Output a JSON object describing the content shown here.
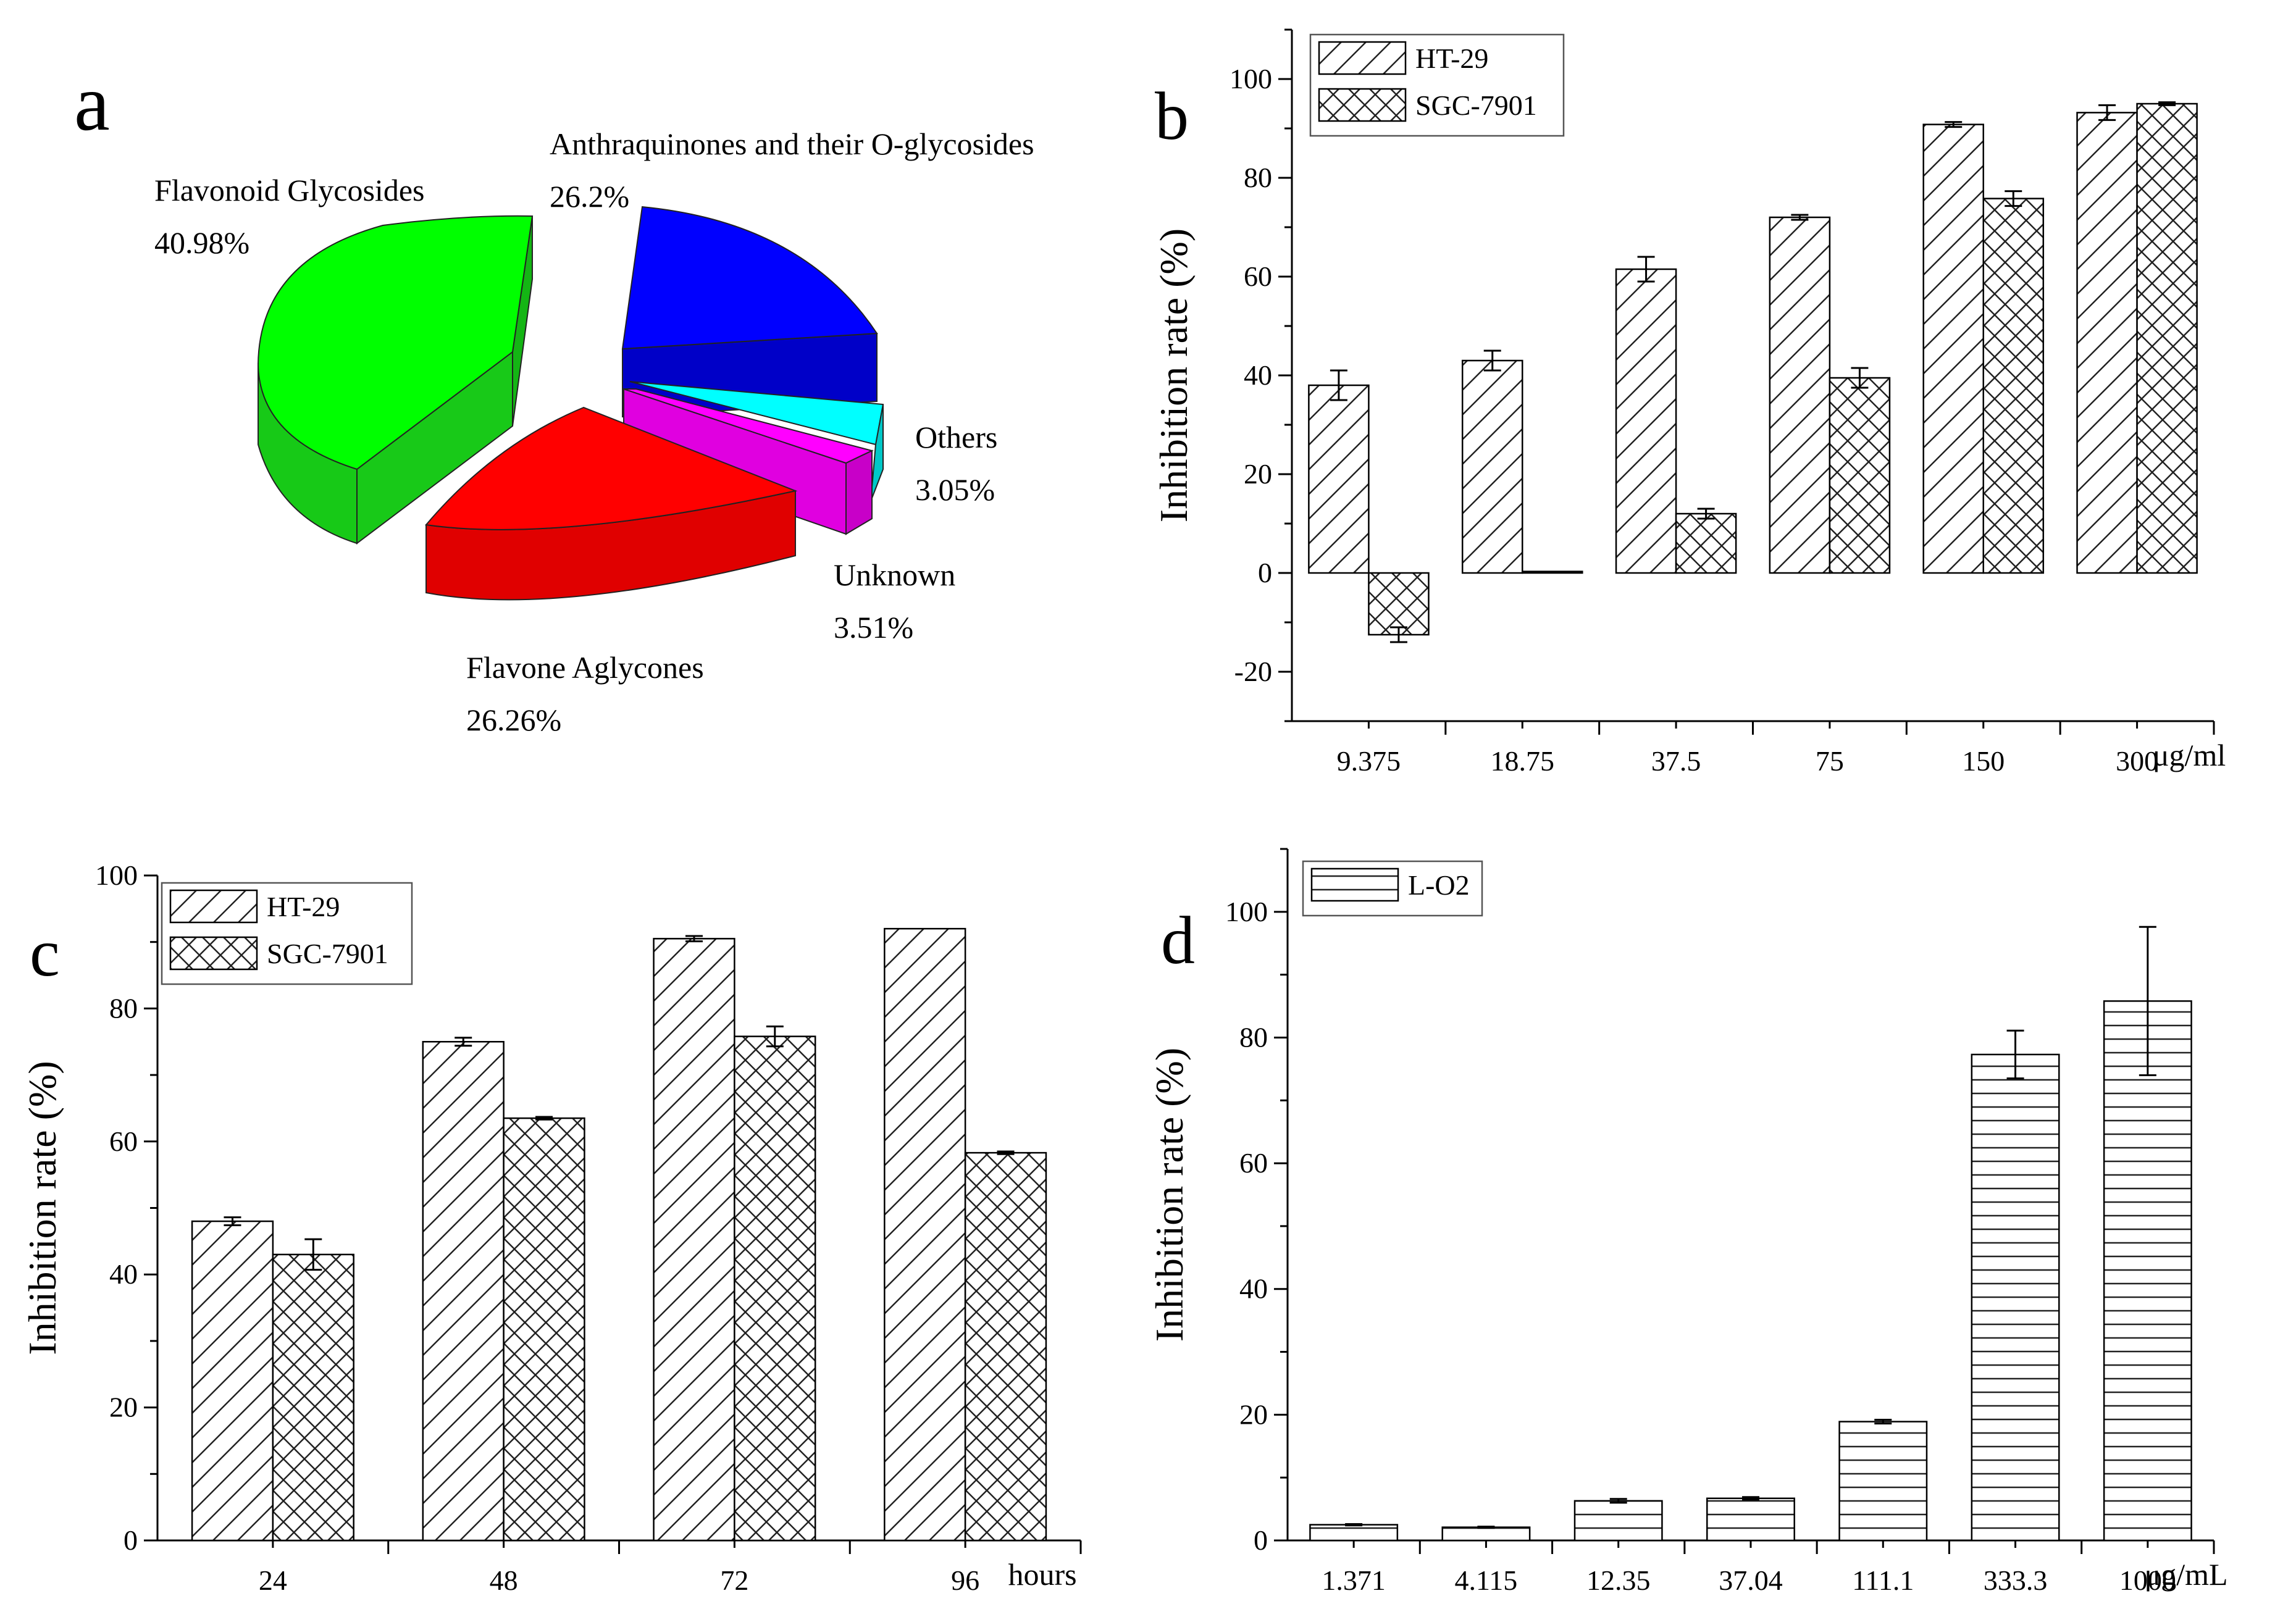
{
  "panels": {
    "a": {
      "letter": "a"
    },
    "b": {
      "letter": "b"
    },
    "c": {
      "letter": "c"
    },
    "d": {
      "letter": "d"
    }
  },
  "chart_data": [
    {
      "id": "a",
      "type": "pie",
      "title": "",
      "slices": [
        {
          "label": "Flavonoid Glycosides",
          "value_label": "40.98%",
          "value": 40.98,
          "color": "#00ff00"
        },
        {
          "label": "Anthraquinones and their O-glycosides",
          "value_label": "26.2%",
          "value": 26.2,
          "color": "#0000ff"
        },
        {
          "label": "Others",
          "value_label": "3.05%",
          "value": 3.05,
          "color": "#00ffff"
        },
        {
          "label": "Unknown",
          "value_label": "3.51%",
          "value": 3.51,
          "color": "#ff00ff"
        },
        {
          "label": "Flavone Aglycones",
          "value_label": "26.26%",
          "value": 26.26,
          "color": "#ff0000"
        }
      ]
    },
    {
      "id": "b",
      "type": "bar",
      "categories": [
        "9.375",
        "18.75",
        "37.5",
        "75",
        "150",
        "300"
      ],
      "xunit": "μg/ml",
      "ylabel": "Inhibition rate (%)",
      "ylim": [
        -30,
        110
      ],
      "yticks": [
        -20,
        0,
        20,
        40,
        60,
        80,
        100
      ],
      "legend_position": "top-left",
      "series": [
        {
          "name": "HT-29",
          "pattern": "diag",
          "values": [
            38,
            43,
            61.5,
            72,
            90.8,
            93.2
          ],
          "errors": [
            3,
            2,
            2.5,
            0.5,
            0.5,
            1.5
          ]
        },
        {
          "name": "SGC-7901",
          "pattern": "cross",
          "values": [
            -12.5,
            0.3,
            12,
            39.5,
            75.8,
            95
          ],
          "errors": [
            1.5,
            0,
            1,
            2,
            1.5,
            0.3
          ]
        }
      ]
    },
    {
      "id": "c",
      "type": "bar",
      "categories": [
        "24",
        "48",
        "72",
        "96"
      ],
      "xunit": "hours",
      "ylabel": "Inhibition rate (%)",
      "ylim": [
        0,
        100
      ],
      "yticks": [
        0,
        20,
        40,
        60,
        80,
        100
      ],
      "legend_position": "top-left",
      "series": [
        {
          "name": "HT-29",
          "pattern": "diag",
          "values": [
            48,
            75,
            90.5,
            92
          ],
          "errors": [
            0.6,
            0.6,
            0.4,
            0
          ]
        },
        {
          "name": "SGC-7901",
          "pattern": "cross",
          "values": [
            43,
            63.5,
            75.8,
            58.3
          ],
          "errors": [
            2.3,
            0.2,
            1.5,
            0.2
          ]
        }
      ]
    },
    {
      "id": "d",
      "type": "bar",
      "categories": [
        "1.371",
        "4.115",
        "12.35",
        "37.04",
        "111.1",
        "333.3",
        "1000"
      ],
      "xunit": "μg/mL",
      "ylabel": "Inhibition rate (%)",
      "ylim": [
        0,
        110
      ],
      "yticks": [
        0,
        20,
        40,
        60,
        80,
        100
      ],
      "legend_position": "top-left",
      "series": [
        {
          "name": "L-O2",
          "pattern": "horiz",
          "values": [
            2.5,
            2.1,
            6.3,
            6.7,
            18.9,
            77.3,
            85.8
          ],
          "errors": [
            0.1,
            0.1,
            0.3,
            0.2,
            0.3,
            3.8,
            11.8
          ]
        }
      ]
    }
  ]
}
